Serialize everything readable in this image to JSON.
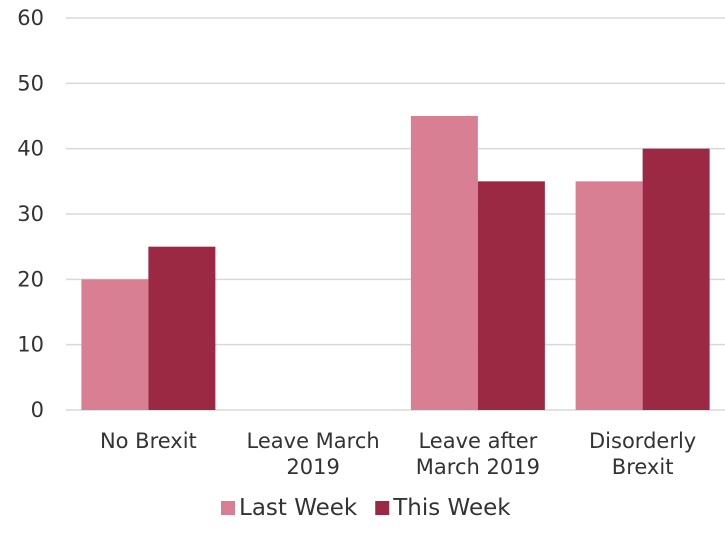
{
  "chart_data": {
    "type": "bar",
    "title": "",
    "xlabel": "",
    "ylabel": "",
    "categories": [
      [
        "No Brexit"
      ],
      [
        "Leave March",
        "2019"
      ],
      [
        "Leave after",
        "March 2019"
      ],
      [
        "Disorderly",
        "Brexit"
      ]
    ],
    "series": [
      {
        "name": "Last Week",
        "color": "#d97f93",
        "values": [
          20,
          0,
          45,
          35
        ]
      },
      {
        "name": "This Week",
        "color": "#9b2944",
        "values": [
          25,
          0,
          35,
          40
        ]
      }
    ],
    "ylim": [
      0,
      60
    ],
    "yticks": [
      0,
      10,
      20,
      30,
      40,
      50,
      60
    ],
    "grid": true,
    "legend_position": "bottom"
  }
}
